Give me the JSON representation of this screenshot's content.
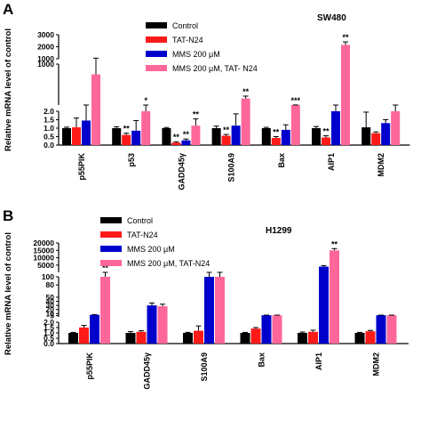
{
  "chart_data": [
    {
      "type": "bar",
      "panel_letter": "A",
      "title": "SW480",
      "ylabel": "Relative mRNA level of control",
      "categories": [
        "p55PIK",
        "p53",
        "GADD45γ",
        "S100A9",
        "Bax",
        "AIP1",
        "MDM2"
      ],
      "series": [
        {
          "name": "Control",
          "color": "#000000",
          "values": [
            1.0,
            1.0,
            1.0,
            1.0,
            1.0,
            1.0,
            1.05
          ],
          "errors": [
            0.06,
            0.08,
            0.04,
            0.12,
            0.05,
            0.1,
            0.9
          ]
        },
        {
          "name": "TAT-N24",
          "color": "#ff1a1a",
          "values": [
            1.05,
            0.6,
            0.15,
            0.55,
            0.42,
            0.45,
            0.7
          ],
          "errors": [
            0.55,
            0.1,
            0.05,
            0.08,
            0.08,
            0.1,
            0.08
          ]
        },
        {
          "name": "MMS 200 μM",
          "color": "#0000cc",
          "values": [
            1.45,
            0.85,
            0.28,
            1.15,
            0.9,
            2.0,
            1.3
          ],
          "errors": [
            0.8,
            0.6,
            0.08,
            0.7,
            0.3,
            0.05,
            0.2
          ]
        },
        {
          "name": "MMS 200 μM, TAT- N24",
          "color": "#ff6699",
          "values": [
            750,
            2.0,
            1.15,
            160,
            3.1,
            2150,
            2.0
          ],
          "errors": [
            300,
            0.15,
            0.4,
            60,
            1.2,
            250,
            0.1
          ]
        }
      ],
      "significance": [
        {
          "category": "p53",
          "series": "TAT-N24",
          "label": "**"
        },
        {
          "category": "p53",
          "series": "MMS 200 μM, TAT- N24",
          "label": "*"
        },
        {
          "category": "GADD45γ",
          "series": "TAT-N24",
          "label": "**"
        },
        {
          "category": "GADD45γ",
          "series": "MMS 200 μM",
          "label": "**"
        },
        {
          "category": "GADD45γ",
          "series": "MMS 200 μM, TAT- N24",
          "label": "**"
        },
        {
          "category": "S100A9",
          "series": "TAT-N24",
          "label": "**"
        },
        {
          "category": "S100A9",
          "series": "MMS 200 μM, TAT- N24",
          "label": "**"
        },
        {
          "category": "Bax",
          "series": "TAT-N24",
          "label": "**"
        },
        {
          "category": "Bax",
          "series": "MMS 200 μM, TAT- N24",
          "label": "***"
        },
        {
          "category": "AIP1",
          "series": "TAT-N24",
          "label": "**"
        },
        {
          "category": "AIP1",
          "series": "MMS 200 μM, TAT- N24",
          "label": "**"
        }
      ],
      "yaxis_segments": [
        {
          "range": [
            0,
            2.0
          ],
          "ticks": [
            "0.0",
            "0.5",
            "1.0",
            "1.5",
            "2.0"
          ],
          "tick_values": [
            0,
            0.5,
            1.0,
            1.5,
            2.0
          ]
        },
        {
          "range": [
            2,
            1000
          ],
          "ticks": [
            "1000"
          ],
          "tick_values": [
            1000
          ]
        },
        {
          "range": [
            1000,
            3000
          ],
          "ticks": [
            "1000",
            "2000",
            "3000"
          ],
          "tick_values": [
            1000,
            2000,
            3000
          ]
        }
      ],
      "legend_placement": "top"
    },
    {
      "type": "bar",
      "panel_letter": "B",
      "title": "H1299",
      "ylabel": "Relative mRNA level of control",
      "categories": [
        "p55PIK",
        "GADD45γ",
        "S100A9",
        "Bax",
        "AIP1",
        "MDM2"
      ],
      "series": [
        {
          "name": "Control",
          "color": "#000000",
          "values": [
            1.0,
            1.0,
            1.0,
            1.0,
            1.0,
            1.0
          ],
          "errors": [
            0.05,
            0.12,
            0.05,
            0.05,
            0.08,
            0.05
          ]
        },
        {
          "name": "TAT-N24",
          "color": "#ff1a1a",
          "values": [
            1.5,
            1.1,
            1.2,
            1.4,
            1.1,
            1.15
          ],
          "errors": [
            0.2,
            0.1,
            0.45,
            0.1,
            0.15,
            0.08
          ]
        },
        {
          "name": "MMS 200 μM",
          "color": "#0000cc",
          "values": [
            7,
            30,
            100,
            6,
            4000,
            6
          ],
          "errors": [
            0.5,
            6,
            3,
            0.3,
            700,
            0.3
          ]
        },
        {
          "name": "MMS 200 μM, TAT-N24",
          "color": "#ff6699",
          "values": [
            100,
            28,
            100,
            6,
            15000,
            6
          ],
          "errors": [
            3,
            5,
            3,
            0.3,
            1200,
            0.3
          ]
        }
      ],
      "significance": [
        {
          "category": "p55PIK",
          "series": "MMS 200 μM, TAT-N24",
          "label": "**"
        },
        {
          "category": "AIP1",
          "series": "MMS 200 μM, TAT-N24",
          "label": "**"
        }
      ],
      "yaxis_segments": [
        {
          "range": [
            0,
            2.0
          ],
          "ticks": [
            "0.0",
            "0.5",
            "1.0",
            "1.5",
            "2.0"
          ],
          "tick_values": [
            0,
            0.5,
            1.0,
            1.5,
            2.0
          ]
        },
        {
          "range": [
            2,
            100
          ],
          "ticks": [
            "5",
            "10",
            "20",
            "30",
            "40",
            "50",
            "80",
            "100"
          ],
          "tick_values": [
            5,
            10,
            20,
            30,
            40,
            50,
            80,
            100
          ]
        },
        {
          "range": [
            100,
            20000
          ],
          "ticks": [
            "5000",
            "10000",
            "15000",
            "20000"
          ],
          "tick_values": [
            5000,
            10000,
            15000,
            20000
          ]
        }
      ],
      "legend_placement": "top-left"
    }
  ]
}
